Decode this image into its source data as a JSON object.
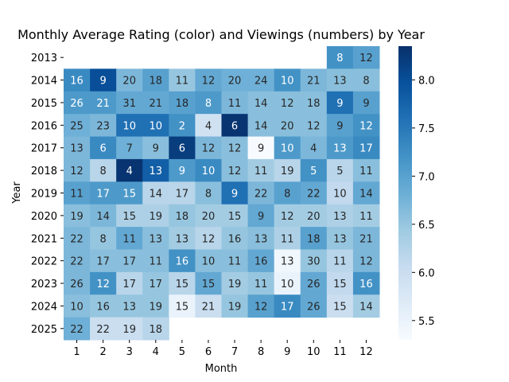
{
  "chart_data": {
    "type": "heatmap",
    "title": "Monthly Average Rating (color) and Viewings (numbers) by Year",
    "xlabel": "Month",
    "ylabel": "Year",
    "x_categories": [
      "1",
      "2",
      "3",
      "4",
      "5",
      "6",
      "7",
      "8",
      "9",
      "10",
      "11",
      "12"
    ],
    "y_categories": [
      "2013",
      "2014",
      "2015",
      "2016",
      "2017",
      "2018",
      "2019",
      "2020",
      "2021",
      "2022",
      "2023",
      "2024",
      "2025"
    ],
    "color_scale": {
      "name": "Blues",
      "min": 5.3,
      "max": 8.35,
      "colorbar_ticks": [
        "5.5",
        "6.0",
        "6.5",
        "7.0",
        "7.5",
        "8.0"
      ]
    },
    "viewings": [
      [
        null,
        null,
        null,
        null,
        null,
        null,
        null,
        null,
        null,
        null,
        8,
        12
      ],
      [
        16,
        9,
        20,
        18,
        11,
        12,
        20,
        24,
        10,
        21,
        13,
        8
      ],
      [
        26,
        21,
        31,
        21,
        18,
        8,
        11,
        14,
        12,
        18,
        9,
        9
      ],
      [
        25,
        23,
        10,
        10,
        2,
        4,
        6,
        14,
        20,
        12,
        9,
        12
      ],
      [
        13,
        6,
        7,
        9,
        6,
        12,
        12,
        9,
        10,
        4,
        13,
        17
      ],
      [
        12,
        8,
        4,
        13,
        9,
        10,
        12,
        11,
        19,
        5,
        5,
        11
      ],
      [
        11,
        17,
        15,
        14,
        17,
        8,
        9,
        22,
        8,
        22,
        10,
        14
      ],
      [
        19,
        14,
        15,
        19,
        18,
        20,
        15,
        9,
        12,
        20,
        13,
        11
      ],
      [
        22,
        8,
        11,
        13,
        13,
        12,
        16,
        13,
        11,
        18,
        13,
        21
      ],
      [
        22,
        17,
        17,
        11,
        16,
        10,
        11,
        16,
        13,
        30,
        11,
        12
      ],
      [
        26,
        12,
        17,
        17,
        15,
        15,
        19,
        11,
        10,
        26,
        15,
        16
      ],
      [
        10,
        16,
        13,
        19,
        15,
        21,
        19,
        12,
        17,
        26,
        15,
        14
      ],
      [
        22,
        22,
        19,
        18,
        null,
        null,
        null,
        null,
        null,
        null,
        null,
        null
      ]
    ],
    "ratings": [
      [
        null,
        null,
        null,
        null,
        null,
        null,
        null,
        null,
        null,
        null,
        7.2,
        7.0
      ],
      [
        7.3,
        8.0,
        6.7,
        7.0,
        6.5,
        6.9,
        6.8,
        6.8,
        7.2,
        6.7,
        6.6,
        6.6
      ],
      [
        7.1,
        7.1,
        6.9,
        6.9,
        7.0,
        7.1,
        6.7,
        6.6,
        6.6,
        6.6,
        7.6,
        7.0
      ],
      [
        6.8,
        6.7,
        7.6,
        7.6,
        7.2,
        5.9,
        8.3,
        6.6,
        6.6,
        6.6,
        7.0,
        7.2
      ],
      [
        6.7,
        7.3,
        6.8,
        6.6,
        8.2,
        6.7,
        6.6,
        5.3,
        7.1,
        6.7,
        7.1,
        7.3
      ],
      [
        6.7,
        6.2,
        8.3,
        7.8,
        7.1,
        7.3,
        6.6,
        6.4,
        6.2,
        7.2,
        6.2,
        6.6
      ],
      [
        7.0,
        7.1,
        7.1,
        6.2,
        6.2,
        6.6,
        7.6,
        6.7,
        7.0,
        6.9,
        6.1,
        6.9
      ],
      [
        6.6,
        6.7,
        6.3,
        6.3,
        6.5,
        6.4,
        6.4,
        6.9,
        6.4,
        6.4,
        6.3,
        6.4
      ],
      [
        6.7,
        6.5,
        6.9,
        6.6,
        6.4,
        6.2,
        6.5,
        6.6,
        6.3,
        7.0,
        6.5,
        6.7
      ],
      [
        6.7,
        6.6,
        6.6,
        6.6,
        7.2,
        6.6,
        6.6,
        6.9,
        5.4,
        6.5,
        6.2,
        6.7
      ],
      [
        6.7,
        7.2,
        6.2,
        6.5,
        6.2,
        6.9,
        6.4,
        6.5,
        5.5,
        6.9,
        6.1,
        7.2
      ],
      [
        6.6,
        6.5,
        6.5,
        6.5,
        5.5,
        6.0,
        6.5,
        7.0,
        7.3,
        6.9,
        6.0,
        6.4
      ],
      [
        6.8,
        6.0,
        6.0,
        6.2,
        null,
        null,
        null,
        null,
        null,
        null,
        null,
        null
      ]
    ]
  }
}
